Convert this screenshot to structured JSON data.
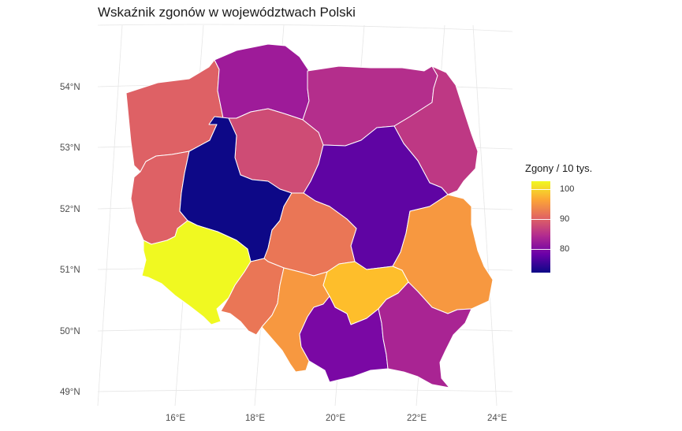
{
  "title": "Wskaźnik zgonów w województwach Polski",
  "axes": {
    "lat_labels": [
      "54°N",
      "53°N",
      "52°N",
      "51°N",
      "50°N",
      "49°N"
    ],
    "lon_labels": [
      "16°E",
      "18°E",
      "20°E",
      "22°E",
      "24°E"
    ]
  },
  "legend": {
    "title": "Zgony / 10 tys.",
    "ticks": [
      "100",
      "90",
      "80"
    ],
    "scale": "plasma",
    "range": [
      72,
      101
    ]
  },
  "regions": [
    {
      "name": "zachodniopomorskie",
      "value": 89
    },
    {
      "name": "pomorskie",
      "value": 82
    },
    {
      "name": "warmińsko-mazurskie",
      "value": 84
    },
    {
      "name": "podlaskie",
      "value": 85
    },
    {
      "name": "kujawsko-pomorskie",
      "value": 87
    },
    {
      "name": "lubuskie",
      "value": 89
    },
    {
      "name": "wielkopolskie",
      "value": 72
    },
    {
      "name": "mazowieckie",
      "value": 77
    },
    {
      "name": "łódzkie",
      "value": 91
    },
    {
      "name": "lubelskie",
      "value": 94
    },
    {
      "name": "dolnośląskie",
      "value": 101
    },
    {
      "name": "opolskie",
      "value": 91
    },
    {
      "name": "śląskie",
      "value": 94
    },
    {
      "name": "świętokrzyskie",
      "value": 97
    },
    {
      "name": "małopolskie",
      "value": 79
    },
    {
      "name": "podkarpackie",
      "value": 83
    }
  ]
}
